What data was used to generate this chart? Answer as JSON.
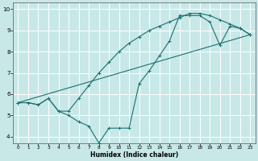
{
  "xlabel": "Humidex (Indice chaleur)",
  "background_color": "#c8e8e8",
  "grid_color": "#ffffff",
  "line_color": "#1a7070",
  "xlim": [
    -0.5,
    23.5
  ],
  "ylim": [
    3.7,
    10.3
  ],
  "xticks": [
    0,
    1,
    2,
    3,
    4,
    5,
    6,
    7,
    8,
    9,
    10,
    11,
    12,
    13,
    14,
    15,
    16,
    17,
    18,
    19,
    20,
    21,
    22,
    23
  ],
  "yticks": [
    4,
    5,
    6,
    7,
    8,
    9,
    10
  ],
  "line1_x": [
    0,
    1,
    2,
    3,
    4,
    5,
    6,
    7,
    8,
    9,
    10,
    11,
    12,
    13,
    14,
    15,
    16,
    17,
    18,
    19,
    20,
    21,
    22,
    23
  ],
  "line1_y": [
    5.6,
    5.6,
    5.5,
    5.8,
    5.2,
    5.0,
    4.7,
    4.5,
    3.7,
    4.4,
    4.4,
    4.4,
    6.5,
    7.1,
    7.8,
    8.5,
    9.7,
    9.7,
    9.7,
    9.4,
    8.3,
    9.2,
    9.1,
    8.8
  ],
  "line2_x": [
    0,
    1,
    2,
    3,
    4,
    5,
    6,
    7,
    8,
    9,
    10,
    11,
    12,
    13,
    14,
    15,
    16,
    17,
    18,
    19,
    20,
    21,
    22,
    23
  ],
  "line2_y": [
    5.6,
    5.6,
    5.5,
    5.8,
    5.2,
    5.2,
    5.8,
    6.4,
    7.0,
    7.5,
    8.0,
    8.4,
    8.7,
    9.0,
    9.2,
    9.4,
    9.6,
    9.8,
    9.8,
    9.7,
    9.5,
    9.3,
    9.1,
    8.8
  ],
  "line3_x": [
    0,
    23
  ],
  "line3_y": [
    5.6,
    8.8
  ]
}
